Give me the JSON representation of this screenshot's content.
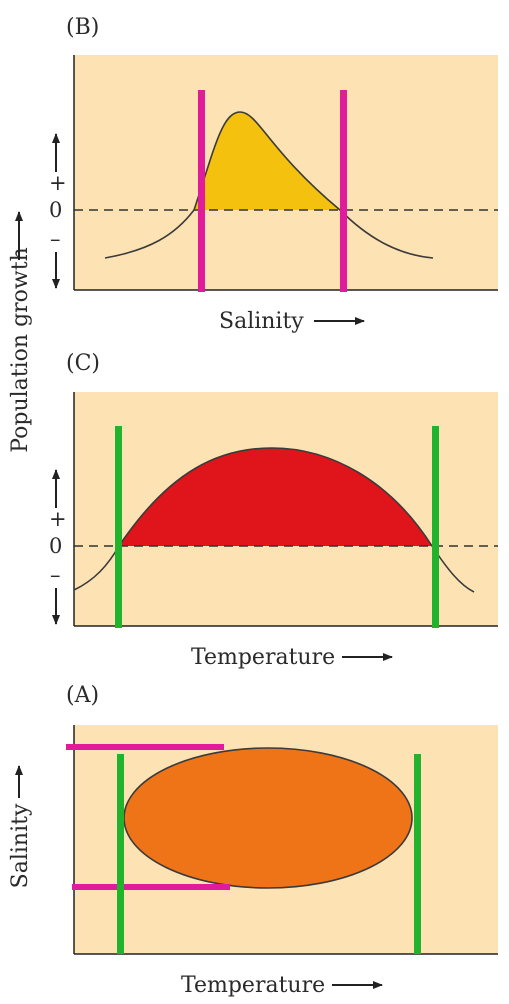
{
  "panels": {
    "b": {
      "label": "(B)",
      "x_axis_label": "Salinity",
      "zero_mark": "0",
      "plus_mark": "+",
      "minus_mark": "–"
    },
    "c": {
      "label": "(C)",
      "x_axis_label": "Temperature",
      "zero_mark": "0",
      "plus_mark": "+",
      "minus_mark": "–"
    },
    "a": {
      "label": "(A)",
      "x_axis_label": "Temperature",
      "y_axis_label": "Salinity"
    }
  },
  "shared_y_label": "Population growth",
  "colors": {
    "panel_bg": "#fde2b3",
    "fill_b": "#f3c10e",
    "fill_c": "#e0141b",
    "fill_a": "#ef7417",
    "marker_magenta": "#e01c9c",
    "marker_green": "#21b22e",
    "curve": "#3b3b3b"
  }
}
